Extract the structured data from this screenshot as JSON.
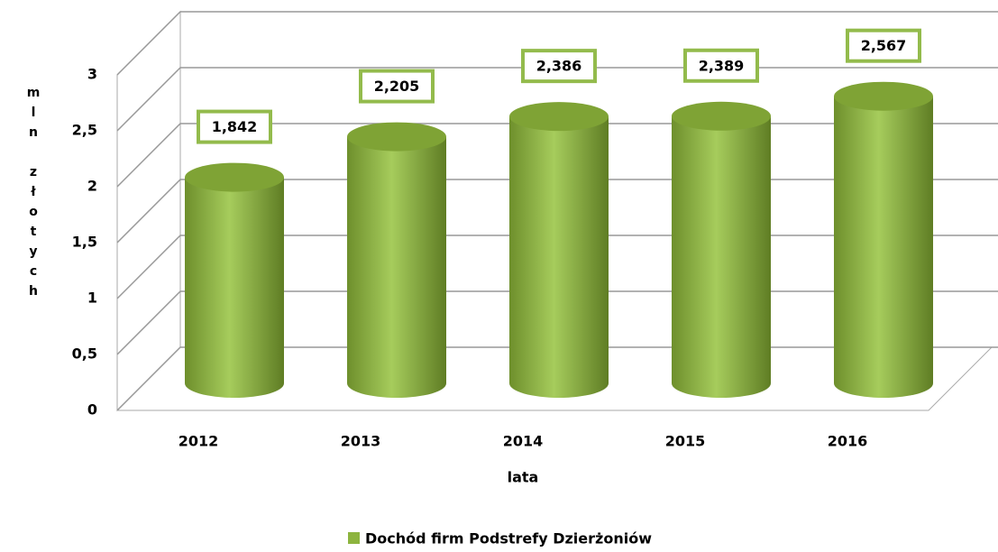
{
  "chart_data": {
    "type": "cylinder",
    "categories": [
      "2012",
      "2013",
      "2014",
      "2015",
      "2016"
    ],
    "series": [
      {
        "name": "Dochód firm Podstrefy Dzierżoniów",
        "color": "#8db43e",
        "values": [
          1.842,
          2.205,
          2.386,
          2.389,
          2.567
        ],
        "value_labels": [
          "1,842",
          "2,205",
          "2,386",
          "2,389",
          "2,567"
        ]
      }
    ],
    "ylim": [
      0,
      3
    ],
    "yticks": [
      0,
      {
        "value": 0.5,
        "label": "0,5"
      },
      1,
      {
        "value": 1.5,
        "label": "1,5"
      },
      2,
      {
        "value": 2.5,
        "label": "2,5"
      },
      3
    ],
    "y_label": "mln złotych",
    "x_label": "lata",
    "grid": true,
    "legend": "bottom"
  }
}
